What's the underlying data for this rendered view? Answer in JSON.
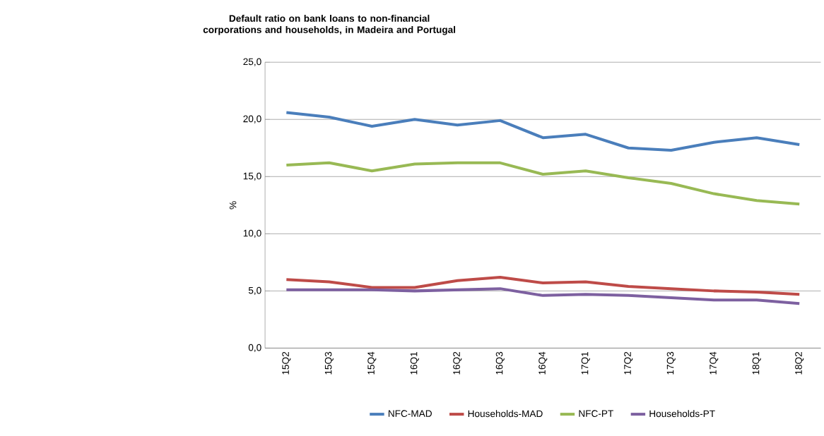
{
  "chart_data": {
    "type": "line",
    "title": "Default ratio on bank loans to non-financial corporations and households,  in Madeira and Portugal",
    "ylabel": "%",
    "categories": [
      "15Q2",
      "15Q3",
      "15Q4",
      "16Q1",
      "16Q2",
      "16Q3",
      "16Q4",
      "17Q1",
      "17Q2",
      "17Q3",
      "17Q4",
      "18Q1",
      "18Q2"
    ],
    "series": [
      {
        "name": "NFC-MAD",
        "color": "#4a7ebb",
        "values": [
          20.6,
          20.2,
          19.4,
          20.0,
          19.5,
          19.9,
          18.4,
          18.7,
          17.5,
          17.3,
          18.0,
          18.4,
          17.8
        ]
      },
      {
        "name": "Households-MAD",
        "color": "#be4b48",
        "values": [
          6.0,
          5.8,
          5.3,
          5.3,
          5.9,
          6.2,
          5.7,
          5.8,
          5.4,
          5.2,
          5.0,
          4.9,
          4.7
        ]
      },
      {
        "name": "NFC-PT",
        "color": "#98b954",
        "values": [
          16.0,
          16.2,
          15.5,
          16.1,
          16.2,
          16.2,
          15.2,
          15.5,
          14.9,
          14.4,
          13.5,
          12.9,
          12.6
        ]
      },
      {
        "name": "Households-PT",
        "color": "#7d60a0",
        "values": [
          5.1,
          5.1,
          5.1,
          5.0,
          5.1,
          5.2,
          4.6,
          4.7,
          4.6,
          4.4,
          4.2,
          4.2,
          3.9
        ]
      }
    ],
    "ylim": [
      0,
      25
    ],
    "yticks": [
      {
        "value": 0,
        "label": "0,0"
      },
      {
        "value": 5,
        "label": "5,0"
      },
      {
        "value": 10,
        "label": "10,0"
      },
      {
        "value": 15,
        "label": "15,0"
      },
      {
        "value": 20,
        "label": "20,0"
      },
      {
        "value": 25,
        "label": "25,0"
      }
    ],
    "grid": "y",
    "legend": "bottom",
    "marker": "none",
    "line_style": "solid"
  }
}
